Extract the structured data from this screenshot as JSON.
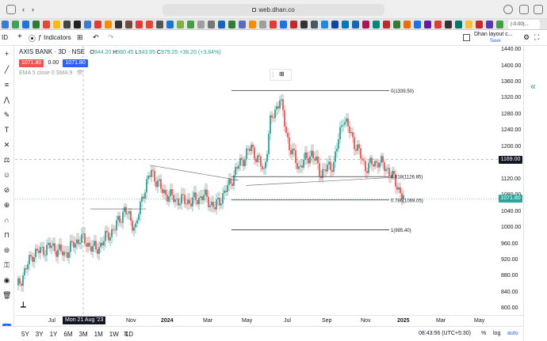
{
  "browser": {
    "url": "web.dhan.co"
  },
  "tabs_bar": {
    "active_tab_label": "(-0.00)..."
  },
  "toolbar": {
    "symbol_short": "ID",
    "indicators_label": "Indicators",
    "layout_name": "Dhan layout c...",
    "save_label": "Save"
  },
  "legend": {
    "symbol": "AXIS BANK · 3D · NSE",
    "open_label": "O",
    "open": "944.20",
    "high_label": "H",
    "high": "980.45",
    "low_label": "L",
    "low": "943.95",
    "close_label": "C",
    "close": "979.25",
    "change": "+36.20 (+3.84%)",
    "sell_price": "1071.80",
    "spread": "0.00",
    "buy_price": "1071.80",
    "ema_label": "EMA 5 close 0 SMA 9"
  },
  "chart_data": {
    "type": "candlestick",
    "title": "AXIS BANK · 3D · NSE",
    "y_ticks": [
      "1440.00",
      "1400.00",
      "1360.00",
      "1320.00",
      "1280.00",
      "1240.00",
      "1200.00",
      "1160.00",
      "1120.00",
      "1080.00",
      "1040.00",
      "1000.00",
      "960.00",
      "920.00",
      "880.00",
      "840.00",
      "800.00"
    ],
    "ylim": [
      785,
      1450
    ],
    "x_ticks": [
      "Jul",
      "Mon 21 Aug '23",
      "Nov",
      "2024",
      "Mar",
      "May",
      "Jul",
      "Sep",
      "Nov",
      "2025",
      "Mar",
      "May"
    ],
    "crosshair_date": "Mon 21 Aug '23",
    "crosshair_price": "1169.00",
    "last_price": "1071.80",
    "fib_levels": [
      {
        "label": "0(1339.50)",
        "value": 1339.5
      },
      {
        "label": "0.618(1126.85)",
        "value": 1126.85
      },
      {
        "label": "0.786(1069.05)",
        "value": 1069.05
      },
      {
        "label": "1(995.40)",
        "value": 995.4
      }
    ],
    "colors": {
      "up": "#26a69a",
      "down": "#ef5350"
    }
  },
  "bottom_bar": {
    "ranges": [
      "5Y",
      "3Y",
      "1Y",
      "6M",
      "3M",
      "1M",
      "1W",
      "1D"
    ],
    "timestamp": "08:43:56 (UTC+5:30)",
    "percent_label": "%",
    "log_label": "log",
    "auto_label": "auto"
  }
}
